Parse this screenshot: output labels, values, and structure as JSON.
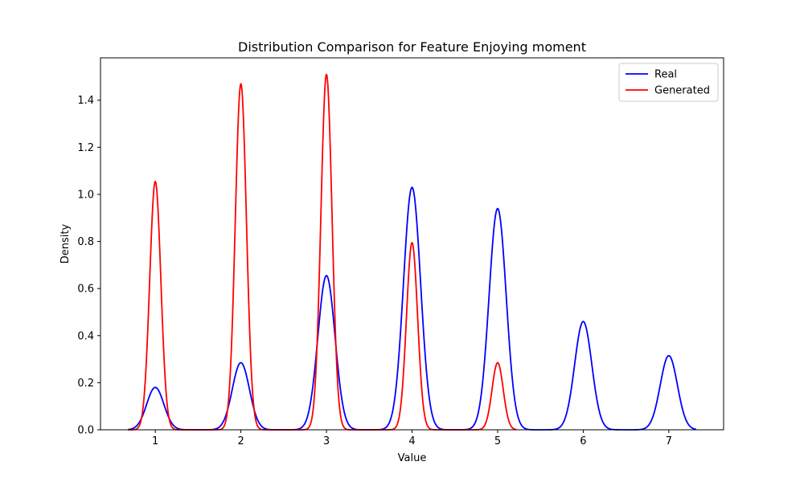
{
  "chart_data": {
    "type": "line",
    "title": "Distribution Comparison for Feature Enjoying moment",
    "xlabel": "Value",
    "ylabel": "Density",
    "xlim": [
      0.36,
      7.64
    ],
    "ylim": [
      0,
      1.58
    ],
    "x_ticks": [
      1,
      2,
      3,
      4,
      5,
      6,
      7
    ],
    "y_ticks": [
      0.0,
      0.2,
      0.4,
      0.6,
      0.8,
      1.0,
      1.2,
      1.4
    ],
    "y_tick_labels": [
      "0.0",
      "0.2",
      "0.4",
      "0.6",
      "0.8",
      "1.0",
      "1.2",
      "1.4"
    ],
    "grid": false,
    "legend_position": "top-right",
    "series": [
      {
        "name": "Real",
        "color": "#0000ff",
        "x_range": [
          0.68,
          7.32
        ],
        "peaks": [
          {
            "x": 1,
            "y": 0.18
          },
          {
            "x": 2,
            "y": 0.285
          },
          {
            "x": 3,
            "y": 0.655
          },
          {
            "x": 4,
            "y": 1.03
          },
          {
            "x": 5,
            "y": 0.94
          },
          {
            "x": 6,
            "y": 0.46
          },
          {
            "x": 7,
            "y": 0.315
          }
        ],
        "bandwidth": 0.1
      },
      {
        "name": "Generated",
        "color": "#ff0000",
        "x_range": [
          0.68,
          5.22
        ],
        "peaks": [
          {
            "x": 1,
            "y": 1.055
          },
          {
            "x": 2,
            "y": 1.47
          },
          {
            "x": 3,
            "y": 1.51
          },
          {
            "x": 4,
            "y": 0.795
          },
          {
            "x": 5,
            "y": 0.285
          }
        ],
        "bandwidth": 0.065
      }
    ]
  }
}
